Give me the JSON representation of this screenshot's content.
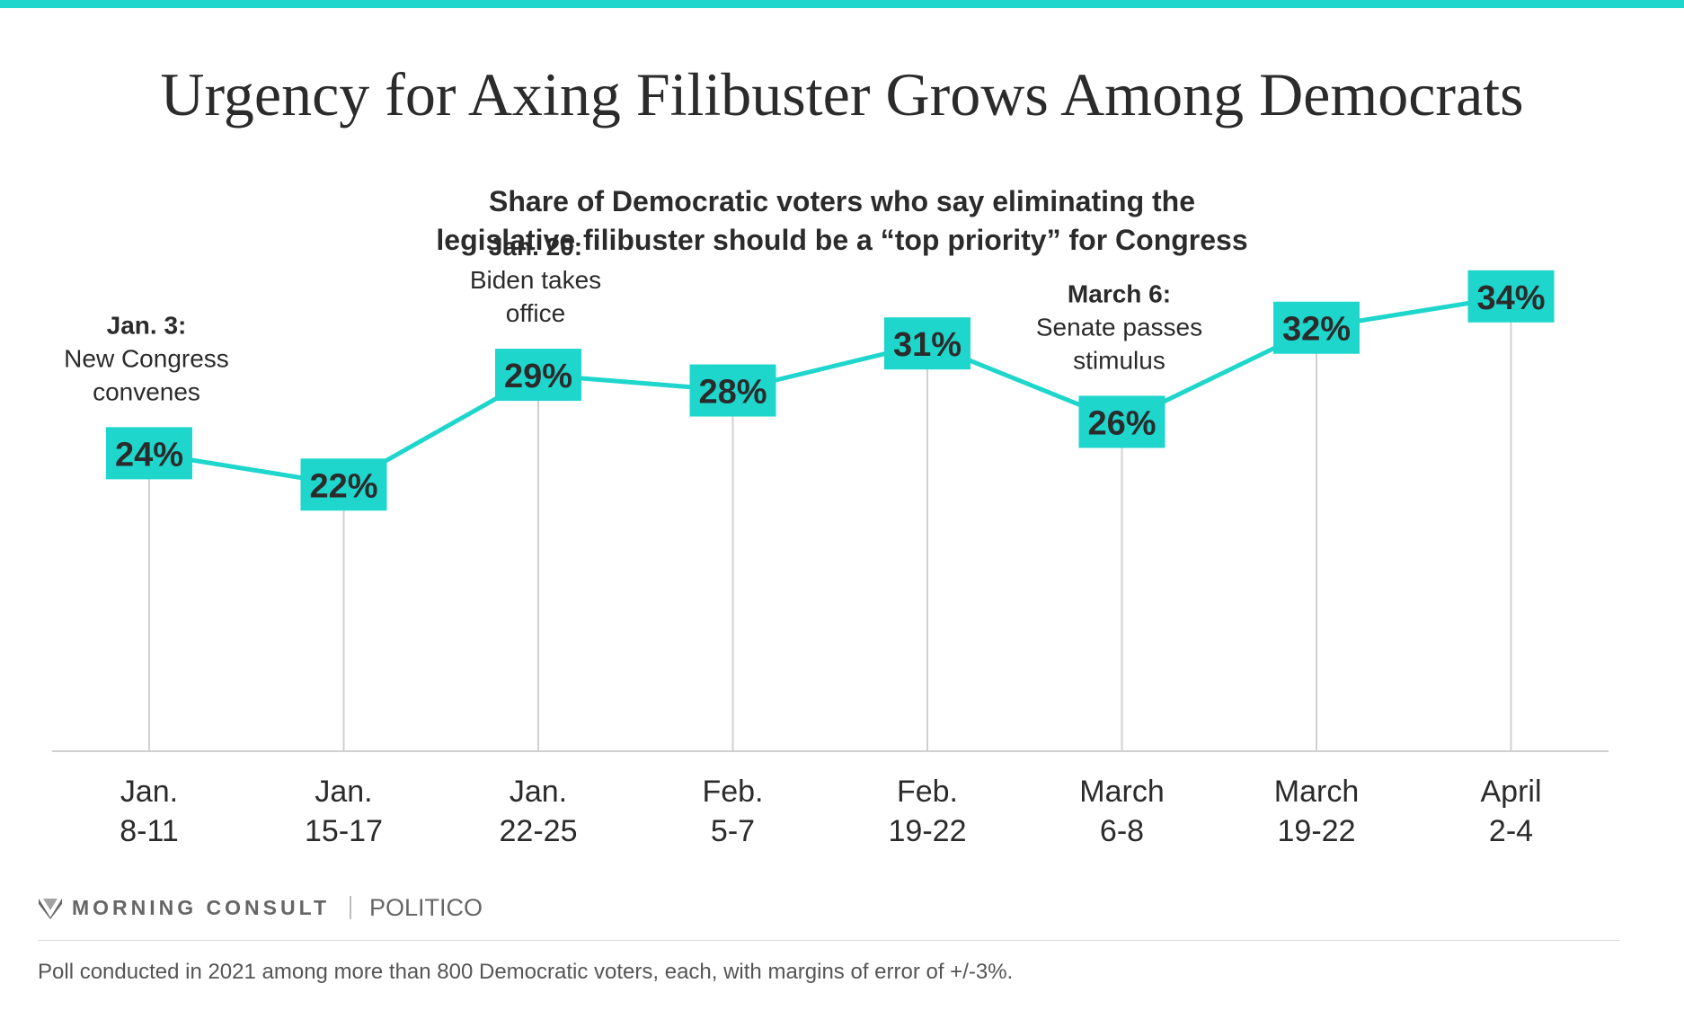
{
  "title": "Urgency for Axing Filibuster Grows Among Democrats",
  "subtitle_line1": "Share of Democratic voters who say eliminating the",
  "subtitle_line2": "legislative filibuster should be a “top priority” for Congress",
  "colors": {
    "accent": "#1ed6cc",
    "text": "#2b2b2b",
    "grid": "#d0d0d0"
  },
  "chart_data": {
    "type": "line",
    "title": "Urgency for Axing Filibuster Grows Among Democrats",
    "categories": [
      [
        "Jan.",
        "8-11"
      ],
      [
        "Jan.",
        "15-17"
      ],
      [
        "Jan.",
        "22-25"
      ],
      [
        "Feb.",
        "5-7"
      ],
      [
        "Feb.",
        "19-22"
      ],
      [
        "March",
        "6-8"
      ],
      [
        "March",
        "19-22"
      ],
      [
        "April",
        "2-4"
      ]
    ],
    "values": [
      24,
      22,
      29,
      28,
      31,
      26,
      32,
      34
    ],
    "value_labels": [
      "24%",
      "22%",
      "29%",
      "28%",
      "31%",
      "26%",
      "32%",
      "34%"
    ],
    "ylim": [
      5,
      38
    ],
    "grid": false,
    "annotations": [
      {
        "index": 0,
        "bold": "Jan. 3:",
        "lines": [
          "New Congress",
          "convenes"
        ]
      },
      {
        "index": 2,
        "bold": "Jan. 20:",
        "lines": [
          "Biden takes",
          "office"
        ]
      },
      {
        "index": 5,
        "bold": "March 6:",
        "lines": [
          "Senate passes",
          "stimulus"
        ]
      }
    ]
  },
  "brand": {
    "morning_consult": "MORNING CONSULT",
    "politico": "POLITICO"
  },
  "footnote": "Poll conducted in 2021 among more than 800 Democratic voters, each, with margins of error of +/-3%."
}
